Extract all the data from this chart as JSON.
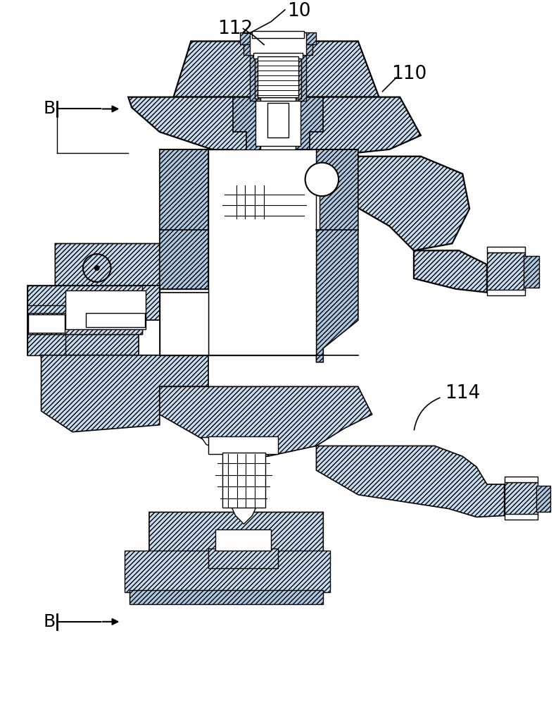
{
  "bg_color": "#ffffff",
  "hatch_fc": "#c8ddf0",
  "hatch_fc2": "#adc8e0",
  "line_color": "#000000",
  "label_10": "10",
  "label_110": "110",
  "label_112": "112",
  "label_114": "114",
  "label_B": "B",
  "fig_width": 7.9,
  "fig_height": 10.0
}
